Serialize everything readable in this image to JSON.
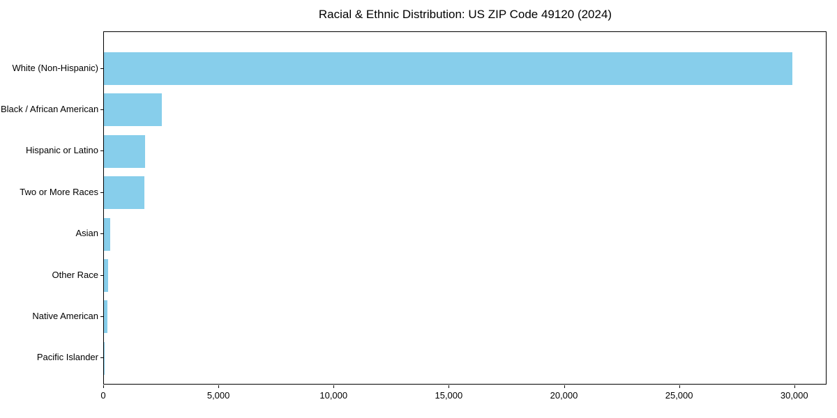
{
  "title": "Racial & Ethnic Distribution: US ZIP Code 49120 (2024)",
  "chart_data": {
    "type": "bar",
    "orientation": "horizontal",
    "title": "Racial & Ethnic Distribution: US ZIP Code 49120 (2024)",
    "xlabel": "",
    "ylabel": "",
    "categories": [
      "White (Non-Hispanic)",
      "Black / African American",
      "Hispanic or Latino",
      "Two or More Races",
      "Asian",
      "Other Race",
      "Native American",
      "Pacific Islander"
    ],
    "values": [
      29900,
      2500,
      1800,
      1760,
      270,
      175,
      155,
      15
    ],
    "x_ticks": [
      0,
      5000,
      10000,
      15000,
      20000,
      25000,
      30000
    ],
    "x_tick_labels": [
      "0",
      "5,000",
      "10,000",
      "15,000",
      "20,000",
      "25,000",
      "30,000"
    ],
    "xlim": [
      0,
      31400
    ],
    "bar_color": "#87CEEB",
    "grid": false,
    "legend": null
  }
}
